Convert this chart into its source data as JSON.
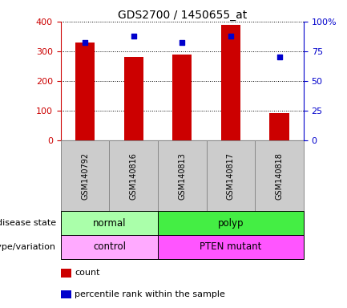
{
  "title": "GDS2700 / 1450655_at",
  "samples": [
    "GSM140792",
    "GSM140816",
    "GSM140813",
    "GSM140817",
    "GSM140818"
  ],
  "counts": [
    330,
    280,
    290,
    390,
    90
  ],
  "percentile_ranks": [
    82,
    88,
    82,
    88,
    70
  ],
  "bar_color": "#cc0000",
  "dot_color": "#0000cc",
  "ylim_left": [
    0,
    400
  ],
  "ylim_right": [
    0,
    100
  ],
  "yticks_left": [
    0,
    100,
    200,
    300,
    400
  ],
  "ytick_labels_left": [
    "0",
    "100",
    "200",
    "300",
    "400"
  ],
  "yticks_right": [
    0,
    25,
    50,
    75,
    100
  ],
  "ytick_labels_right": [
    "0",
    "25",
    "50",
    "75",
    "100%"
  ],
  "disease_state_groups": [
    {
      "label": "normal",
      "samples": [
        0,
        1
      ],
      "color": "#aaffaa"
    },
    {
      "label": "polyp",
      "samples": [
        2,
        3,
        4
      ],
      "color": "#44ee44"
    }
  ],
  "genotype_groups": [
    {
      "label": "control",
      "samples": [
        0,
        1
      ],
      "color": "#ffaaff"
    },
    {
      "label": "PTEN mutant",
      "samples": [
        2,
        3,
        4
      ],
      "color": "#ff55ff"
    }
  ],
  "legend_count_label": "count",
  "legend_pct_label": "percentile rank within the sample",
  "label_disease_state": "disease state",
  "label_genotype": "genotype/variation",
  "bg_color": "#ffffff",
  "tick_label_color_left": "#cc0000",
  "tick_label_color_right": "#0000cc",
  "sample_box_color": "#cccccc",
  "sample_box_edge": "#888888"
}
